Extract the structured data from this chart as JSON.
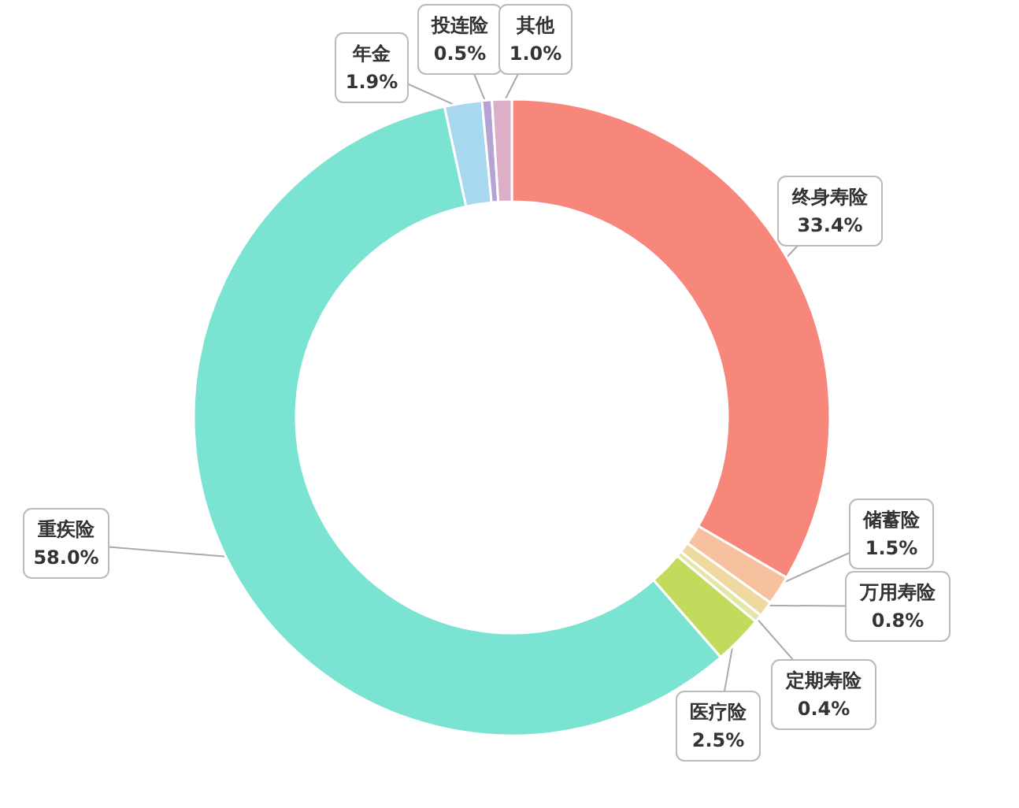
{
  "chart_data": {
    "type": "donut",
    "categories": [
      "终身寿险",
      "储蓄险",
      "万用寿险",
      "定期寿险",
      "医疗险",
      "重疾险",
      "年金",
      "投连险",
      "其他"
    ],
    "values": [
      33.4,
      1.5,
      0.8,
      0.4,
      2.5,
      58.0,
      1.9,
      0.5,
      1.0
    ],
    "value_labels": [
      "33.4%",
      "1.5%",
      "0.8%",
      "0.4%",
      "2.5%",
      "58.0%",
      "1.9%",
      "0.5%",
      "1.0%"
    ],
    "colors": [
      "#f7877a",
      "#f7c1a0",
      "#f0d9a0",
      "#e4e6a8",
      "#c2db5c",
      "#7be3d2",
      "#a8d8f0",
      "#b6a3d6",
      "#dcaec8"
    ]
  }
}
